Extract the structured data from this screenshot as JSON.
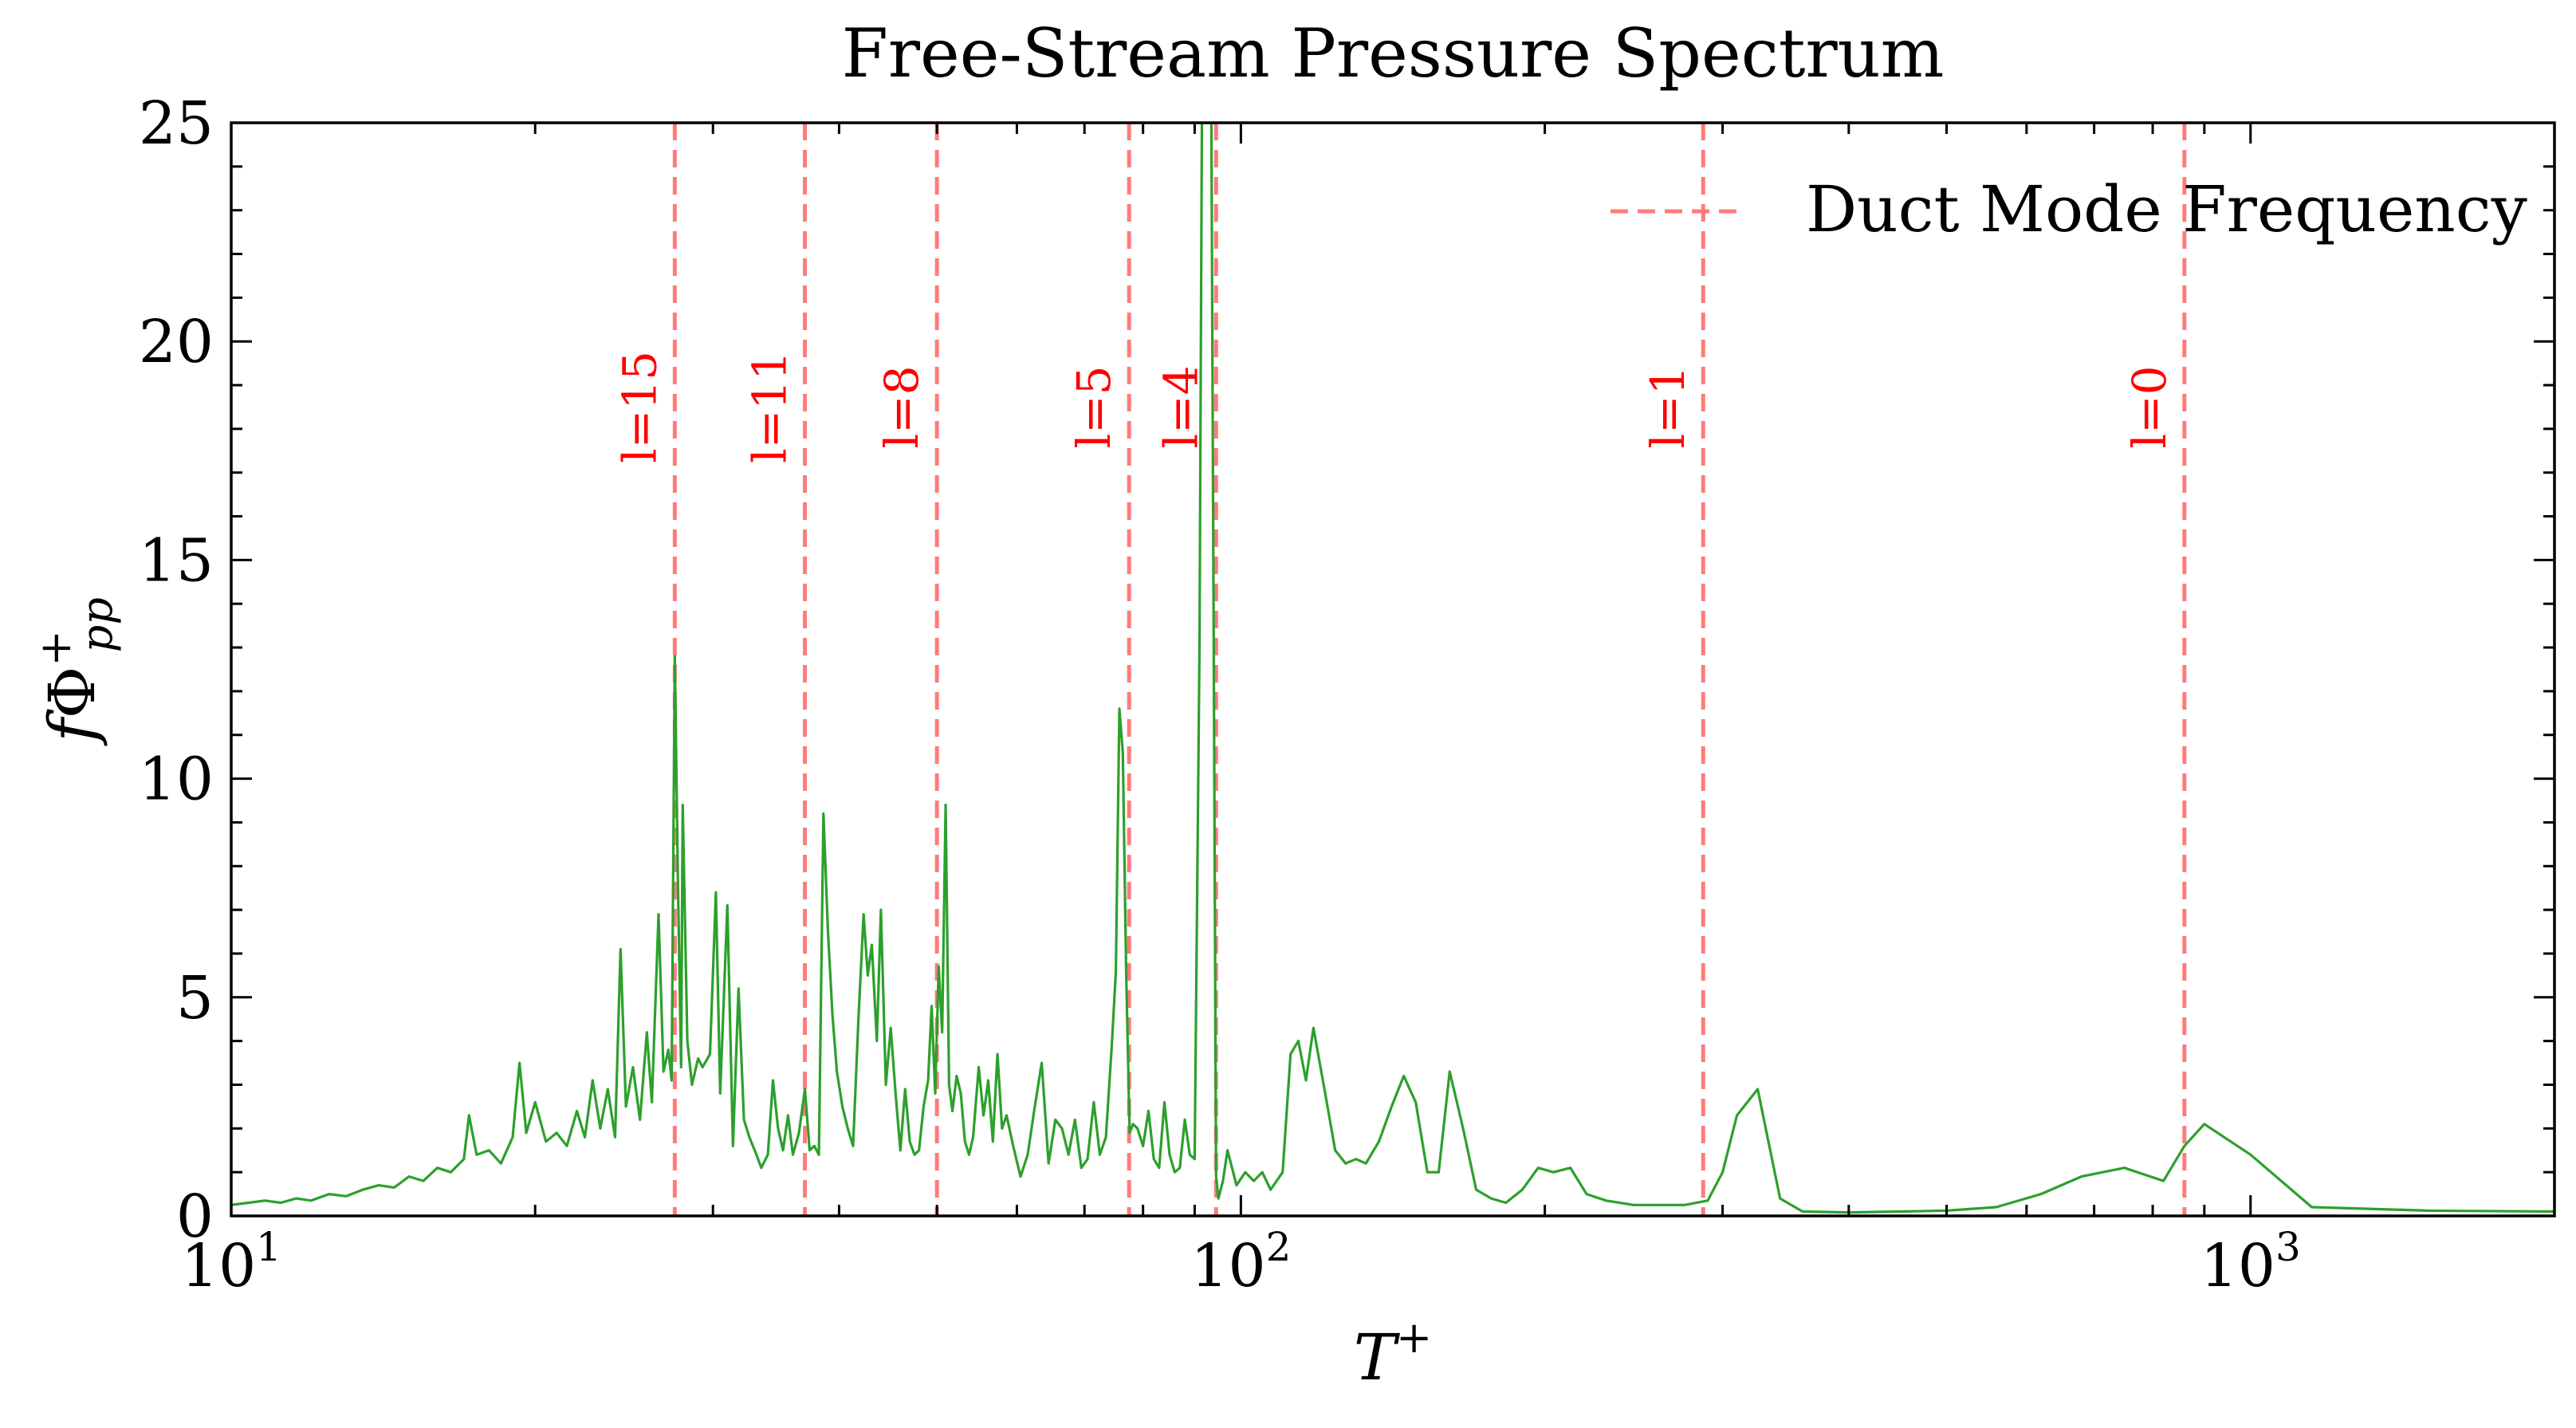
{
  "chart_data": {
    "type": "line",
    "title": "Free-Stream Pressure Spectrum",
    "xlabel": {
      "base": "T",
      "sup": "+"
    },
    "ylabel": {
      "prefix": "f",
      "symbol": "Φ",
      "sup": "+",
      "sub": "pp"
    },
    "xscale": "log",
    "xlim": [
      10,
      2000
    ],
    "ylim": [
      0,
      25
    ],
    "grid": false,
    "legend_position": "top-right",
    "yticks": [
      0,
      5,
      10,
      15,
      20,
      25
    ],
    "ytick_labels": [
      "0",
      "5",
      "10",
      "15",
      "20",
      "25"
    ],
    "xticks": [
      10,
      100,
      1000
    ],
    "xtick_labels": [
      {
        "base": "10",
        "exp": "1"
      },
      {
        "base": "10",
        "exp": "2"
      },
      {
        "base": "10",
        "exp": "3"
      }
    ],
    "colors": {
      "spectrum": "#2ca02c",
      "modes": "#ff7b7b",
      "mode_labels": "#ff0000"
    },
    "legend": [
      {
        "label": "Duct Mode Frequency",
        "style": "dashed",
        "color": "#ff7b7b"
      }
    ],
    "duct_modes": [
      {
        "label": "l=15",
        "x": 27.5
      },
      {
        "label": "l=11",
        "x": 37.0
      },
      {
        "label": "l=8",
        "x": 50.0
      },
      {
        "label": "l=5",
        "x": 77.5
      },
      {
        "label": "l=4",
        "x": 94.5
      },
      {
        "label": "l=1",
        "x": 287.0
      },
      {
        "label": "l=0",
        "x": 860.0
      }
    ],
    "series": [
      {
        "style": "solid",
        "color": "#2ca02c",
        "points": [
          [
            10.0,
            0.25
          ],
          [
            10.4,
            0.3
          ],
          [
            10.8,
            0.35
          ],
          [
            11.2,
            0.3
          ],
          [
            11.6,
            0.4
          ],
          [
            12.0,
            0.35
          ],
          [
            12.5,
            0.5
          ],
          [
            13.0,
            0.45
          ],
          [
            13.5,
            0.6
          ],
          [
            14.0,
            0.7
          ],
          [
            14.5,
            0.65
          ],
          [
            15.0,
            0.9
          ],
          [
            15.5,
            0.8
          ],
          [
            16.0,
            1.1
          ],
          [
            16.5,
            1.0
          ],
          [
            17.0,
            1.3
          ],
          [
            17.2,
            2.3
          ],
          [
            17.5,
            1.4
          ],
          [
            18.0,
            1.5
          ],
          [
            18.5,
            1.2
          ],
          [
            19.0,
            1.8
          ],
          [
            19.3,
            3.5
          ],
          [
            19.6,
            1.9
          ],
          [
            20.0,
            2.6
          ],
          [
            20.5,
            1.7
          ],
          [
            21.0,
            1.9
          ],
          [
            21.5,
            1.6
          ],
          [
            22.0,
            2.4
          ],
          [
            22.4,
            1.8
          ],
          [
            22.8,
            3.1
          ],
          [
            23.2,
            2.0
          ],
          [
            23.6,
            2.9
          ],
          [
            24.0,
            1.8
          ],
          [
            24.3,
            6.1
          ],
          [
            24.6,
            2.5
          ],
          [
            25.0,
            3.4
          ],
          [
            25.4,
            2.2
          ],
          [
            25.8,
            4.2
          ],
          [
            26.1,
            2.6
          ],
          [
            26.5,
            6.9
          ],
          [
            26.8,
            3.3
          ],
          [
            27.1,
            3.8
          ],
          [
            27.3,
            3.1
          ],
          [
            27.5,
            12.8
          ],
          [
            27.7,
            7.5
          ],
          [
            27.9,
            3.4
          ],
          [
            28.0,
            9.4
          ],
          [
            28.3,
            4.0
          ],
          [
            28.6,
            3.0
          ],
          [
            29.0,
            3.6
          ],
          [
            29.3,
            3.4
          ],
          [
            29.8,
            3.7
          ],
          [
            30.2,
            7.4
          ],
          [
            30.5,
            2.8
          ],
          [
            31.0,
            7.1
          ],
          [
            31.4,
            1.6
          ],
          [
            31.8,
            5.2
          ],
          [
            32.2,
            2.2
          ],
          [
            32.6,
            1.8
          ],
          [
            33.0,
            1.5
          ],
          [
            33.5,
            1.1
          ],
          [
            34.0,
            1.4
          ],
          [
            34.4,
            3.1
          ],
          [
            34.8,
            2.0
          ],
          [
            35.2,
            1.5
          ],
          [
            35.6,
            2.3
          ],
          [
            36.0,
            1.4
          ],
          [
            36.5,
            1.9
          ],
          [
            37.0,
            2.9
          ],
          [
            37.4,
            1.5
          ],
          [
            37.8,
            1.6
          ],
          [
            38.2,
            1.4
          ],
          [
            38.6,
            9.2
          ],
          [
            39.0,
            6.5
          ],
          [
            39.4,
            4.6
          ],
          [
            39.8,
            3.3
          ],
          [
            40.3,
            2.5
          ],
          [
            40.8,
            2.0
          ],
          [
            41.3,
            1.6
          ],
          [
            41.8,
            4.5
          ],
          [
            42.3,
            6.9
          ],
          [
            42.7,
            5.5
          ],
          [
            43.1,
            6.2
          ],
          [
            43.6,
            4.0
          ],
          [
            44.0,
            7.0
          ],
          [
            44.5,
            3.0
          ],
          [
            45.0,
            4.3
          ],
          [
            45.5,
            2.8
          ],
          [
            46.0,
            1.5
          ],
          [
            46.5,
            2.9
          ],
          [
            47.0,
            1.7
          ],
          [
            47.5,
            1.4
          ],
          [
            48.0,
            1.5
          ],
          [
            48.5,
            2.5
          ],
          [
            49.0,
            3.1
          ],
          [
            49.4,
            4.8
          ],
          [
            49.8,
            2.8
          ],
          [
            50.2,
            5.7
          ],
          [
            50.6,
            4.2
          ],
          [
            51.0,
            9.4
          ],
          [
            51.4,
            3.0
          ],
          [
            51.8,
            2.4
          ],
          [
            52.3,
            3.2
          ],
          [
            52.8,
            2.8
          ],
          [
            53.3,
            1.7
          ],
          [
            53.8,
            1.4
          ],
          [
            54.3,
            1.8
          ],
          [
            55.0,
            3.4
          ],
          [
            55.6,
            2.3
          ],
          [
            56.2,
            3.1
          ],
          [
            56.8,
            1.7
          ],
          [
            57.4,
            3.7
          ],
          [
            58.0,
            2.0
          ],
          [
            58.6,
            2.3
          ],
          [
            59.5,
            1.6
          ],
          [
            60.5,
            0.9
          ],
          [
            61.5,
            1.4
          ],
          [
            62.5,
            2.5
          ],
          [
            63.5,
            3.5
          ],
          [
            64.5,
            1.2
          ],
          [
            65.5,
            2.2
          ],
          [
            66.5,
            2.0
          ],
          [
            67.5,
            1.4
          ],
          [
            68.5,
            2.2
          ],
          [
            69.5,
            1.1
          ],
          [
            70.5,
            1.3
          ],
          [
            71.5,
            2.6
          ],
          [
            72.5,
            1.4
          ],
          [
            73.5,
            1.8
          ],
          [
            74.5,
            3.9
          ],
          [
            75.2,
            5.6
          ],
          [
            75.8,
            11.6
          ],
          [
            76.4,
            10.6
          ],
          [
            77.0,
            5.5
          ],
          [
            77.6,
            1.9
          ],
          [
            78.2,
            2.1
          ],
          [
            79.0,
            2.0
          ],
          [
            80.0,
            1.6
          ],
          [
            81.0,
            2.4
          ],
          [
            82.0,
            1.3
          ],
          [
            83.0,
            1.1
          ],
          [
            84.0,
            2.6
          ],
          [
            85.0,
            1.4
          ],
          [
            86.0,
            1.0
          ],
          [
            87.0,
            1.1
          ],
          [
            88.0,
            2.2
          ],
          [
            89.0,
            1.4
          ],
          [
            90.0,
            1.3
          ],
          [
            91.0,
            13.0
          ],
          [
            91.5,
            25.0
          ],
          [
            93.0,
            25.0
          ],
          [
            93.5,
            25.0
          ],
          [
            94.5,
            0.9
          ],
          [
            95.0,
            0.4
          ],
          [
            96.0,
            0.8
          ],
          [
            97.0,
            1.5
          ],
          [
            98.0,
            1.1
          ],
          [
            99.0,
            0.7
          ],
          [
            101.0,
            1.0
          ],
          [
            103.0,
            0.8
          ],
          [
            105.0,
            1.0
          ],
          [
            107.0,
            0.6
          ],
          [
            110.0,
            1.0
          ],
          [
            112.0,
            3.7
          ],
          [
            114.0,
            4.0
          ],
          [
            116.0,
            3.1
          ],
          [
            118.0,
            4.3
          ],
          [
            121.0,
            2.9
          ],
          [
            124.0,
            1.5
          ],
          [
            127.0,
            1.2
          ],
          [
            130.0,
            1.3
          ],
          [
            133.0,
            1.2
          ],
          [
            137.0,
            1.7
          ],
          [
            141.0,
            2.5
          ],
          [
            145.0,
            3.2
          ],
          [
            149.0,
            2.6
          ],
          [
            153.0,
            1.0
          ],
          [
            157.0,
            1.0
          ],
          [
            161.0,
            3.3
          ],
          [
            166.0,
            2.0
          ],
          [
            171.0,
            0.6
          ],
          [
            177.0,
            0.4
          ],
          [
            183.0,
            0.3
          ],
          [
            190.0,
            0.6
          ],
          [
            197.0,
            1.1
          ],
          [
            204.0,
            1.0
          ],
          [
            212.0,
            1.1
          ],
          [
            220.0,
            0.5
          ],
          [
            230.0,
            0.35
          ],
          [
            245.0,
            0.25
          ],
          [
            260.0,
            0.25
          ],
          [
            275.0,
            0.25
          ],
          [
            290.0,
            0.35
          ],
          [
            300.0,
            1.0
          ],
          [
            310.0,
            2.3
          ],
          [
            325.0,
            2.9
          ],
          [
            342.0,
            0.4
          ],
          [
            360.0,
            0.1
          ],
          [
            400.0,
            0.08
          ],
          [
            450.0,
            0.1
          ],
          [
            500.0,
            0.12
          ],
          [
            560.0,
            0.2
          ],
          [
            620.0,
            0.5
          ],
          [
            680.0,
            0.9
          ],
          [
            750.0,
            1.1
          ],
          [
            820.0,
            0.8
          ],
          [
            860.0,
            1.6
          ],
          [
            900.0,
            2.1
          ],
          [
            1000.0,
            1.4
          ],
          [
            1150.0,
            0.2
          ],
          [
            1500.0,
            0.12
          ],
          [
            2000.0,
            0.1
          ]
        ]
      }
    ]
  }
}
